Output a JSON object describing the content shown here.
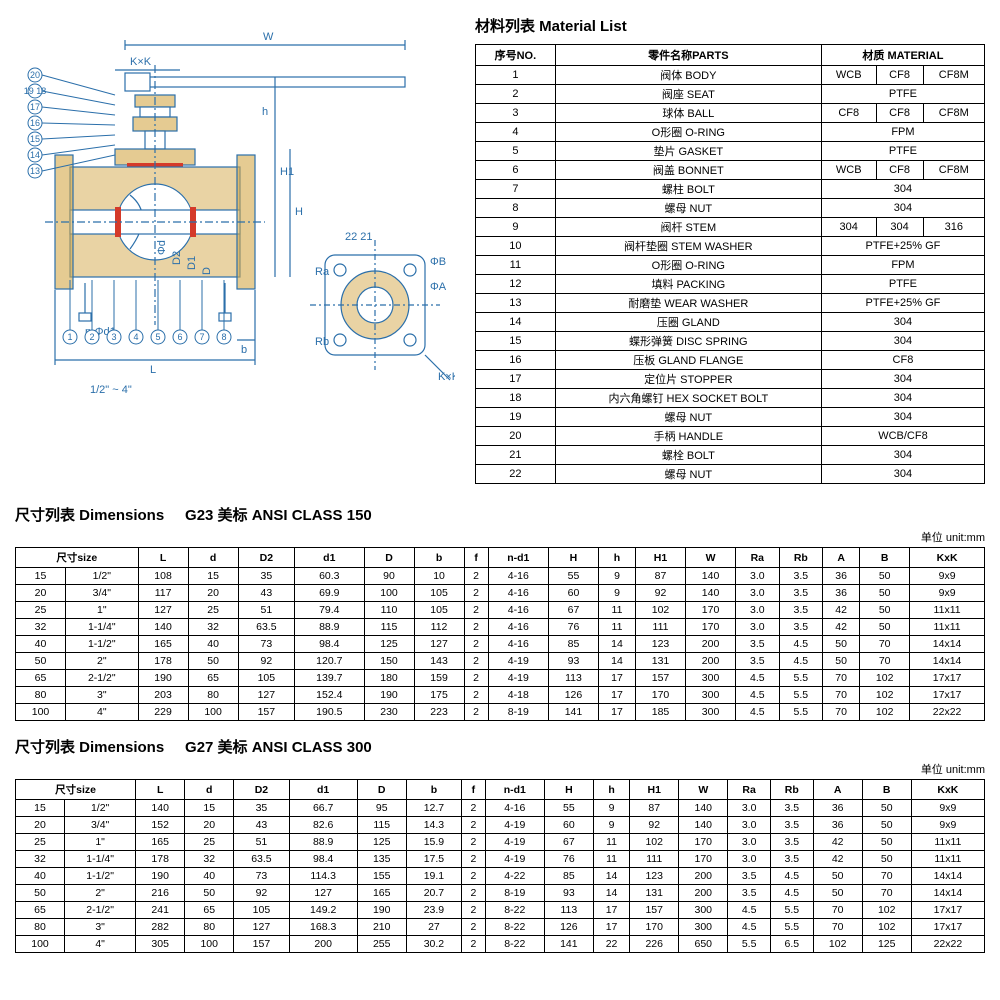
{
  "material": {
    "title": "材料列表 Material List",
    "headers": {
      "no": "序号NO.",
      "parts": "零件名称PARTS",
      "material": "材质 MATERIAL"
    },
    "rows": [
      {
        "no": "1",
        "parts": "阀体 BODY",
        "m": [
          "WCB",
          "CF8",
          "CF8M"
        ]
      },
      {
        "no": "2",
        "parts": "阀座 SEAT",
        "m": [
          "PTFE"
        ]
      },
      {
        "no": "3",
        "parts": "球体 BALL",
        "m": [
          "CF8",
          "CF8",
          "CF8M"
        ]
      },
      {
        "no": "4",
        "parts": "O形圈 O-RING",
        "m": [
          "FPM"
        ]
      },
      {
        "no": "5",
        "parts": "垫片 GASKET",
        "m": [
          "PTFE"
        ]
      },
      {
        "no": "6",
        "parts": "阀盖 BONNET",
        "m": [
          "WCB",
          "CF8",
          "CF8M"
        ]
      },
      {
        "no": "7",
        "parts": "螺柱 BOLT",
        "m": [
          "304"
        ]
      },
      {
        "no": "8",
        "parts": "螺母 NUT",
        "m": [
          "304"
        ]
      },
      {
        "no": "9",
        "parts": "阀杆 STEM",
        "m": [
          "304",
          "304",
          "316"
        ]
      },
      {
        "no": "10",
        "parts": "阀杆垫圈 STEM WASHER",
        "m": [
          "PTFE+25% GF"
        ]
      },
      {
        "no": "11",
        "parts": "O形圈 O-RING",
        "m": [
          "FPM"
        ]
      },
      {
        "no": "12",
        "parts": "填料 PACKING",
        "m": [
          "PTFE"
        ]
      },
      {
        "no": "13",
        "parts": "耐磨垫 WEAR WASHER",
        "m": [
          "PTFE+25% GF"
        ]
      },
      {
        "no": "14",
        "parts": "压圈 GLAND",
        "m": [
          "304"
        ]
      },
      {
        "no": "15",
        "parts": "蝶形弹簧 DISC SPRING",
        "m": [
          "304"
        ]
      },
      {
        "no": "16",
        "parts": "压板 GLAND FLANGE",
        "m": [
          "CF8"
        ]
      },
      {
        "no": "17",
        "parts": "定位片 STOPPER",
        "m": [
          "304"
        ]
      },
      {
        "no": "18",
        "parts": "内六角螺钉 HEX SOCKET BOLT",
        "m": [
          "304"
        ]
      },
      {
        "no": "19",
        "parts": "螺母 NUT",
        "m": [
          "304"
        ]
      },
      {
        "no": "20",
        "parts": "手柄 HANDLE",
        "m": [
          "WCB/CF8"
        ]
      },
      {
        "no": "21",
        "parts": "螺栓 BOLT",
        "m": [
          "304"
        ]
      },
      {
        "no": "22",
        "parts": "螺母 NUT",
        "m": [
          "304"
        ]
      }
    ]
  },
  "dim150": {
    "title_cn": "尺寸列表 Dimensions",
    "title_spec": "G23 美标 ANSI CLASS 150",
    "unit": "单位 unit:mm",
    "cols": [
      "尺寸size",
      "",
      "L",
      "d",
      "D2",
      "d1",
      "D",
      "b",
      "f",
      "n-d1",
      "H",
      "h",
      "H1",
      "W",
      "Ra",
      "Rb",
      "A",
      "B",
      "KxK"
    ],
    "rows": [
      [
        "15",
        "1/2\"",
        "108",
        "15",
        "35",
        "60.3",
        "90",
        "10",
        "2",
        "4-16",
        "55",
        "9",
        "87",
        "140",
        "3.0",
        "3.5",
        "36",
        "50",
        "9x9"
      ],
      [
        "20",
        "3/4\"",
        "117",
        "20",
        "43",
        "69.9",
        "100",
        "105",
        "2",
        "4-16",
        "60",
        "9",
        "92",
        "140",
        "3.0",
        "3.5",
        "36",
        "50",
        "9x9"
      ],
      [
        "25",
        "1\"",
        "127",
        "25",
        "51",
        "79.4",
        "110",
        "105",
        "2",
        "4-16",
        "67",
        "11",
        "102",
        "170",
        "3.0",
        "3.5",
        "42",
        "50",
        "11x11"
      ],
      [
        "32",
        "1-1/4\"",
        "140",
        "32",
        "63.5",
        "88.9",
        "115",
        "112",
        "2",
        "4-16",
        "76",
        "11",
        "111",
        "170",
        "3.0",
        "3.5",
        "42",
        "50",
        "11x11"
      ],
      [
        "40",
        "1-1/2\"",
        "165",
        "40",
        "73",
        "98.4",
        "125",
        "127",
        "2",
        "4-16",
        "85",
        "14",
        "123",
        "200",
        "3.5",
        "4.5",
        "50",
        "70",
        "14x14"
      ],
      [
        "50",
        "2\"",
        "178",
        "50",
        "92",
        "120.7",
        "150",
        "143",
        "2",
        "4-19",
        "93",
        "14",
        "131",
        "200",
        "3.5",
        "4.5",
        "50",
        "70",
        "14x14"
      ],
      [
        "65",
        "2-1/2\"",
        "190",
        "65",
        "105",
        "139.7",
        "180",
        "159",
        "2",
        "4-19",
        "113",
        "17",
        "157",
        "300",
        "4.5",
        "5.5",
        "70",
        "102",
        "17x17"
      ],
      [
        "80",
        "3\"",
        "203",
        "80",
        "127",
        "152.4",
        "190",
        "175",
        "2",
        "4-18",
        "126",
        "17",
        "170",
        "300",
        "4.5",
        "5.5",
        "70",
        "102",
        "17x17"
      ],
      [
        "100",
        "4\"",
        "229",
        "100",
        "157",
        "190.5",
        "230",
        "223",
        "2",
        "8-19",
        "141",
        "17",
        "185",
        "300",
        "4.5",
        "5.5",
        "70",
        "102",
        "22x22"
      ]
    ]
  },
  "dim300": {
    "title_cn": "尺寸列表 Dimensions",
    "title_spec": "G27 美标 ANSI CLASS 300",
    "unit": "单位 unit:mm",
    "cols": [
      "尺寸size",
      "",
      "L",
      "d",
      "D2",
      "d1",
      "D",
      "b",
      "f",
      "n-d1",
      "H",
      "h",
      "H1",
      "W",
      "Ra",
      "Rb",
      "A",
      "B",
      "KxK"
    ],
    "rows": [
      [
        "15",
        "1/2\"",
        "140",
        "15",
        "35",
        "66.7",
        "95",
        "12.7",
        "2",
        "4-16",
        "55",
        "9",
        "87",
        "140",
        "3.0",
        "3.5",
        "36",
        "50",
        "9x9"
      ],
      [
        "20",
        "3/4\"",
        "152",
        "20",
        "43",
        "82.6",
        "115",
        "14.3",
        "2",
        "4-19",
        "60",
        "9",
        "92",
        "140",
        "3.0",
        "3.5",
        "36",
        "50",
        "9x9"
      ],
      [
        "25",
        "1\"",
        "165",
        "25",
        "51",
        "88.9",
        "125",
        "15.9",
        "2",
        "4-19",
        "67",
        "11",
        "102",
        "170",
        "3.0",
        "3.5",
        "42",
        "50",
        "11x11"
      ],
      [
        "32",
        "1-1/4\"",
        "178",
        "32",
        "63.5",
        "98.4",
        "135",
        "17.5",
        "2",
        "4-19",
        "76",
        "11",
        "111",
        "170",
        "3.0",
        "3.5",
        "42",
        "50",
        "11x11"
      ],
      [
        "40",
        "1-1/2\"",
        "190",
        "40",
        "73",
        "114.3",
        "155",
        "19.1",
        "2",
        "4-22",
        "85",
        "14",
        "123",
        "200",
        "3.5",
        "4.5",
        "50",
        "70",
        "14x14"
      ],
      [
        "50",
        "2\"",
        "216",
        "50",
        "92",
        "127",
        "165",
        "20.7",
        "2",
        "8-19",
        "93",
        "14",
        "131",
        "200",
        "3.5",
        "4.5",
        "50",
        "70",
        "14x14"
      ],
      [
        "65",
        "2-1/2\"",
        "241",
        "65",
        "105",
        "149.2",
        "190",
        "23.9",
        "2",
        "8-22",
        "113",
        "17",
        "157",
        "300",
        "4.5",
        "5.5",
        "70",
        "102",
        "17x17"
      ],
      [
        "80",
        "3\"",
        "282",
        "80",
        "127",
        "168.3",
        "210",
        "27",
        "2",
        "8-22",
        "126",
        "17",
        "170",
        "300",
        "4.5",
        "5.5",
        "70",
        "102",
        "17x17"
      ],
      [
        "100",
        "4\"",
        "305",
        "100",
        "157",
        "200",
        "255",
        "30.2",
        "2",
        "8-22",
        "141",
        "22",
        "226",
        "650",
        "5.5",
        "6.5",
        "102",
        "125",
        "22x22"
      ]
    ]
  },
  "diagram": {
    "color_line": "#2b6faa",
    "color_hatch": "#d4a84a",
    "color_accent": "#d43a2a",
    "labels": {
      "W": "W",
      "KxK": "K×K",
      "H": "H",
      "H1": "H1",
      "h": "h",
      "L": "L",
      "b": "b",
      "range": "1/2\" ~ 4\"",
      "phi_d": "Φd",
      "D2": "D2",
      "D1": "D1",
      "D": "D",
      "nd1": "n-Φd1",
      "Ra": "Ra",
      "Rb": "Rb",
      "phiA": "ΦA",
      "phiB": "ΦB",
      "callouts_left": [
        "20",
        "19 18",
        "17",
        "16",
        "15",
        "14",
        "13"
      ],
      "callouts_small": [
        "22 21"
      ],
      "callouts_bottom": [
        "1",
        "2",
        "3",
        "4",
        "5",
        "6",
        "7",
        "8"
      ]
    }
  }
}
